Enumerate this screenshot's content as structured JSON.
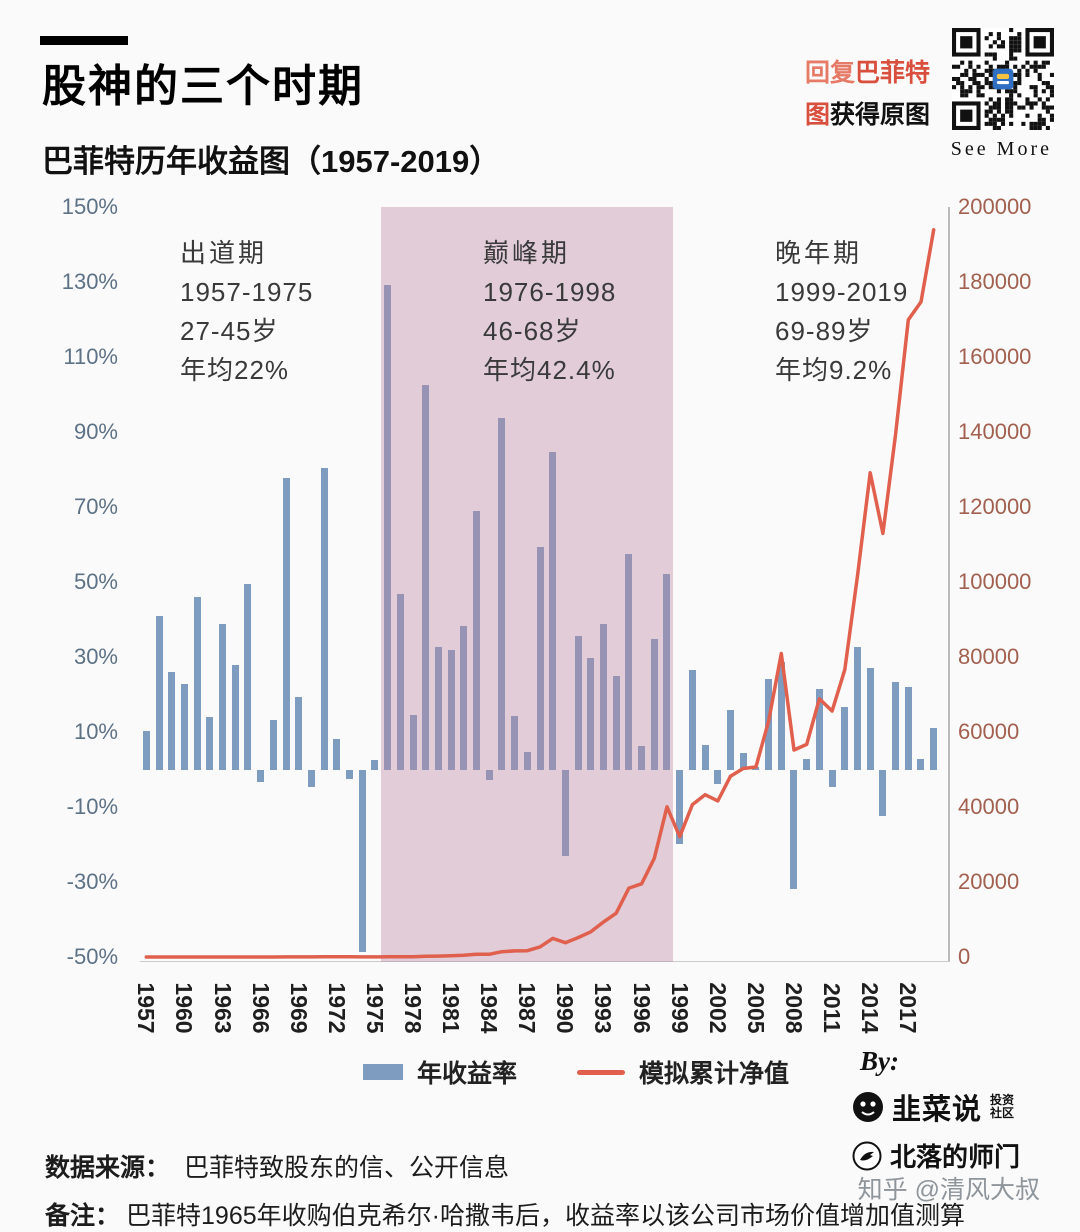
{
  "header": {
    "title": "股神的三个时期",
    "subtitle": "巴菲特历年收益图（1957-2019）",
    "qr_cta": {
      "line1_prefix": "回复",
      "line1_highlight": "巴菲特",
      "line2_highlight": "图",
      "line2_rest": "获得原图"
    },
    "see_more": "See More"
  },
  "periods": [
    {
      "name": "出道期",
      "years": "1957-1975",
      "age": "27-45岁",
      "avg": "年均22%"
    },
    {
      "name": "巅峰期",
      "years": "1976-1998",
      "age": "46-68岁",
      "avg": "年均42.4%"
    },
    {
      "name": "晚年期",
      "years": "1999-2019",
      "age": "69-89岁",
      "avg": "年均9.2%"
    }
  ],
  "chart_data": {
    "type": "bar",
    "title": "巴菲特历年收益图（1957-2019）",
    "x": [
      1957,
      1958,
      1959,
      1960,
      1961,
      1962,
      1963,
      1964,
      1965,
      1966,
      1967,
      1968,
      1969,
      1970,
      1971,
      1972,
      1973,
      1974,
      1975,
      1976,
      1977,
      1978,
      1979,
      1980,
      1981,
      1982,
      1983,
      1984,
      1985,
      1986,
      1987,
      1988,
      1989,
      1990,
      1991,
      1992,
      1993,
      1994,
      1995,
      1996,
      1997,
      1998,
      1999,
      2000,
      2001,
      2002,
      2003,
      2004,
      2005,
      2006,
      2007,
      2008,
      2009,
      2010,
      2011,
      2012,
      2013,
      2014,
      2015,
      2016,
      2017,
      2018,
      2019
    ],
    "series": [
      {
        "name": "年收益率",
        "type": "bar",
        "axis": "left",
        "unit": "%",
        "color": "#7d9cc0",
        "values": [
          10.4,
          40.9,
          25.9,
          22.8,
          45.9,
          13.9,
          38.7,
          27.8,
          49.5,
          -3.4,
          13.3,
          77.8,
          19.4,
          -4.6,
          80.5,
          8.1,
          -2.5,
          -48.7,
          2.5,
          129.3,
          46.8,
          14.5,
          102.5,
          32.8,
          31.8,
          38.4,
          69.0,
          -2.7,
          93.7,
          14.2,
          4.6,
          59.3,
          84.6,
          -23.1,
          35.6,
          29.8,
          38.9,
          25.0,
          57.4,
          6.2,
          34.9,
          52.2,
          -19.9,
          26.6,
          6.5,
          -3.8,
          15.8,
          4.3,
          0.8,
          24.1,
          28.7,
          -31.8,
          2.7,
          21.4,
          -4.7,
          16.8,
          32.7,
          27.0,
          -12.5,
          23.4,
          21.9,
          2.8,
          11.0
        ]
      },
      {
        "name": "模拟累计净值",
        "type": "line",
        "axis": "right",
        "color": "#e0604d",
        "values": [
          1.1,
          1.6,
          2.0,
          2.4,
          3.5,
          4.0,
          5.5,
          7.1,
          10.6,
          10.2,
          11.6,
          20.6,
          24.6,
          23.5,
          42.4,
          45.8,
          44.7,
          22.9,
          23.5,
          53.9,
          79.1,
          90.5,
          183,
          243,
          321,
          444,
          750,
          730,
          1414,
          1615,
          1689,
          2691,
          4968,
          3820,
          5180,
          6724,
          9339,
          11674,
          18375,
          19514,
          26324,
          40066,
          32093,
          40629,
          43270,
          41626,
          48203,
          50275,
          50678,
          62891,
          80941,
          55202,
          56692,
          68824,
          65589,
          76608,
          101660,
          129107,
          112969,
          139404,
          169933,
          174691,
          193907
        ]
      }
    ],
    "left_axis": {
      "min": -50,
      "max": 150,
      "step": 20,
      "unit": "%",
      "ticks": [
        "150%",
        "130%",
        "110%",
        "90%",
        "70%",
        "50%",
        "30%",
        "10%",
        "-10%",
        "-30%",
        "-50%"
      ]
    },
    "right_axis": {
      "min": 0,
      "max": 200000,
      "step": 20000,
      "ticks": [
        "200000",
        "180000",
        "160000",
        "140000",
        "120000",
        "100000",
        "80000",
        "60000",
        "40000",
        "20000",
        "0"
      ]
    },
    "x_ticks": [
      1957,
      1960,
      1963,
      1966,
      1969,
      1972,
      1975,
      1978,
      1981,
      1984,
      1987,
      1990,
      1993,
      1996,
      1999,
      2002,
      2005,
      2008,
      2011,
      2014,
      2017
    ],
    "highlight_band": {
      "from": 1976,
      "to": 1998,
      "color": "rgba(188,136,164,0.40)"
    },
    "grid": false,
    "legend_position": "bottom"
  },
  "legend": {
    "items": [
      {
        "label": "年收益率",
        "swatch": "bar",
        "color": "#7d9cc0"
      },
      {
        "label": "模拟累计净值",
        "swatch": "line",
        "color": "#e0604d"
      }
    ]
  },
  "credits": {
    "by_label": "By:",
    "logo1_name": "韭菜说",
    "logo1_sub": "投资社区",
    "logo2_name": "北落的师门"
  },
  "footer": {
    "source_label": "数据来源：",
    "source_text": "巴菲特致股东的信、公开信息",
    "note_label": "备注：",
    "note_text": "巴菲特1965年收购伯克希尔·哈撒韦后，收益率以该公司市场价值增加值测算",
    "watermark": "知乎 @清风大叔"
  }
}
